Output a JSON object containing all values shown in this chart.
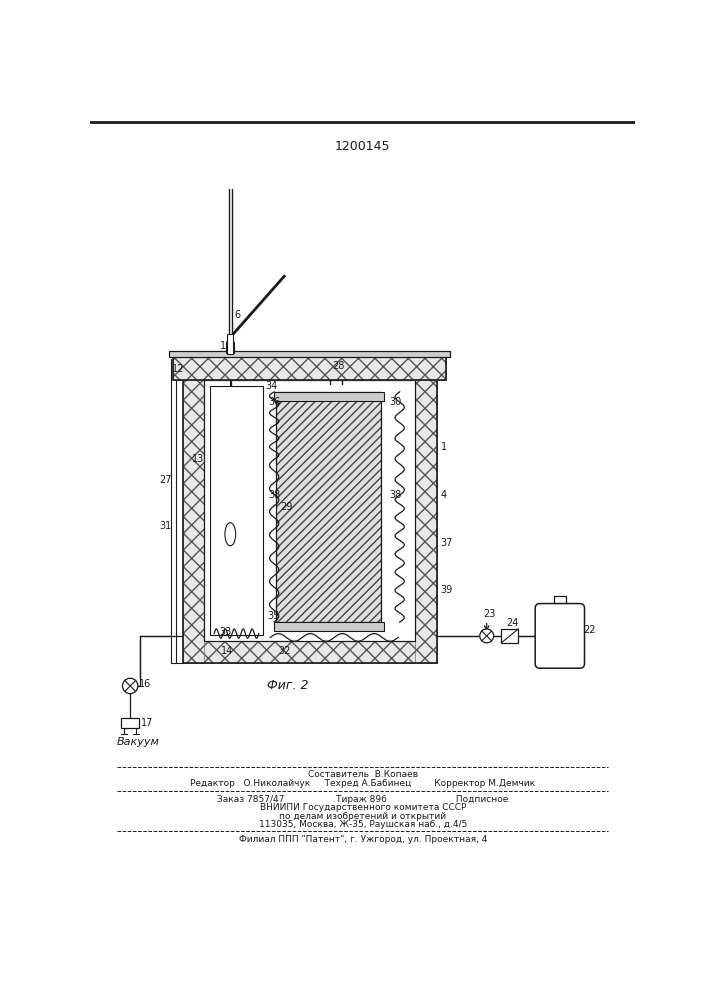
{
  "title": "1200145",
  "fig_label": "Фиг. 2",
  "vacuum_label": "Вакуум",
  "footer_line1": "Составитель  В.Копаев",
  "footer_line2": "Редактор   О.Николайчук     Техред А.Бабинец        Корректор М.Демчик",
  "footer_line3": "Заказ 7857/47                  Тираж 896                        Подписное",
  "footer_line4": "ВНИИПИ Государственного комитета СССР",
  "footer_line5": "по делам изобретений и открытий",
  "footer_line6": "113035, Москва, Ж-35, Раушская наб., д.4/5",
  "footer_line7": "Филиал ППП \"Патент\", г. Ужгород, ул. Проектная, 4",
  "bg_color": "#ffffff",
  "dc": "#1a1a1a"
}
